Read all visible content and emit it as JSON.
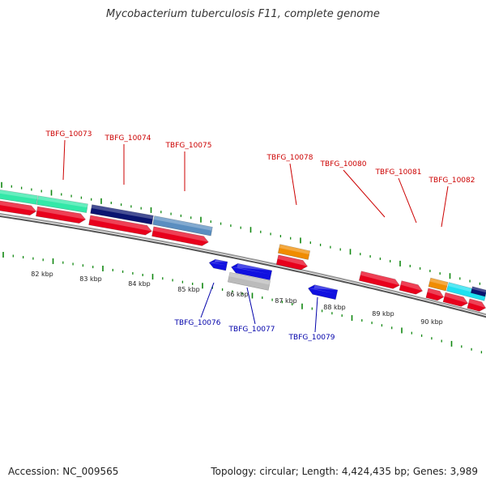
{
  "title": "Mycobacterium tuberculosis F11, complete genome",
  "footer": {
    "accession": "Accession: NC_009565",
    "summary": "Topology: circular; Length: 4,424,435 bp; Genes: 3,989"
  },
  "colors": {
    "red": "#e8001c",
    "teal": "#33e8a8",
    "navy": "#0a1470",
    "steel": "#5a8ec0",
    "orange": "#f08c00",
    "blue": "#1010e0",
    "grey": "#bbbbbb",
    "cyan": "#1ee0f0",
    "tick": "#118811",
    "label_top": "#cc0000",
    "label_bottom": "#0000aa"
  },
  "kbp_labels": [
    "82 kbp",
    "83 kbp",
    "84 kbp",
    "85 kbp",
    "86 kbp",
    "87 kbp",
    "88 kbp",
    "89 kbp",
    "90 kbp"
  ],
  "top_labels": [
    "TBFG_10073",
    "TBFG_10074",
    "TBFG_10075",
    "TBFG_10078",
    "TBFG_10080",
    "TBFG_10081",
    "TBFG_10082"
  ],
  "bottom_labels": [
    "TBFG_10076",
    "TBFG_10077",
    "TBFG_10079"
  ]
}
